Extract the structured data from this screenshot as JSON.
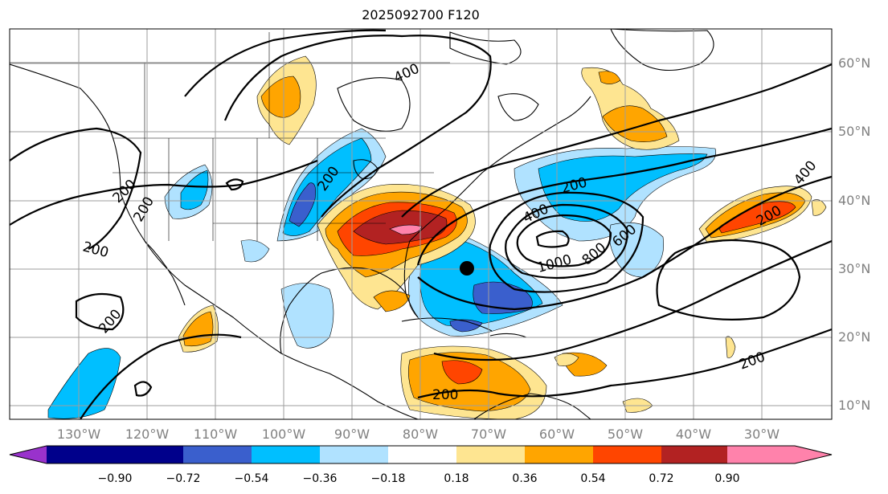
{
  "title": "2025092700 F120",
  "map": {
    "lon_range": [
      -136,
      -15
    ],
    "lat_range": [
      8,
      65
    ],
    "lon_labels": [
      "130°W",
      "120°W",
      "110°W",
      "100°W",
      "90°W",
      "80°W",
      "70°W",
      "60°W",
      "50°W",
      "40°W",
      "30°W"
    ],
    "lat_labels": [
      "10°N",
      "20°N",
      "30°N",
      "40°N",
      "50°N",
      "60°N"
    ],
    "storm_center": {
      "lon": -74,
      "lat": 30
    },
    "contour_labels": [
      "400",
      "200",
      "200",
      "200",
      "200",
      "200",
      "200",
      "400",
      "200",
      "200",
      "400",
      "1000",
      "800",
      "600",
      "200",
      "400",
      "200",
      "200"
    ]
  },
  "colorbar": {
    "colors": [
      "#9932cc",
      "#00008b",
      "#3a5fcd",
      "#00bfff",
      "#b0e2ff",
      "#ffffff",
      "#fee591",
      "#ffa500",
      "#ff4500",
      "#b22222",
      "#ff82ab"
    ],
    "tick_labels": [
      "−0.90",
      "−0.72",
      "−0.54",
      "−0.36",
      "−0.18",
      "0.18",
      "0.36",
      "0.54",
      "0.72",
      "0.90"
    ]
  },
  "legend_colors": {
    "neg_strong": "#3a5fcd",
    "neg_mid": "#00bfff",
    "neg_weak": "#b0e2ff",
    "pos_weak": "#fee591",
    "pos_mid": "#ffa500",
    "pos_strong": "#ff4500",
    "pos_very": "#b22222",
    "pos_max": "#ff82ab"
  }
}
